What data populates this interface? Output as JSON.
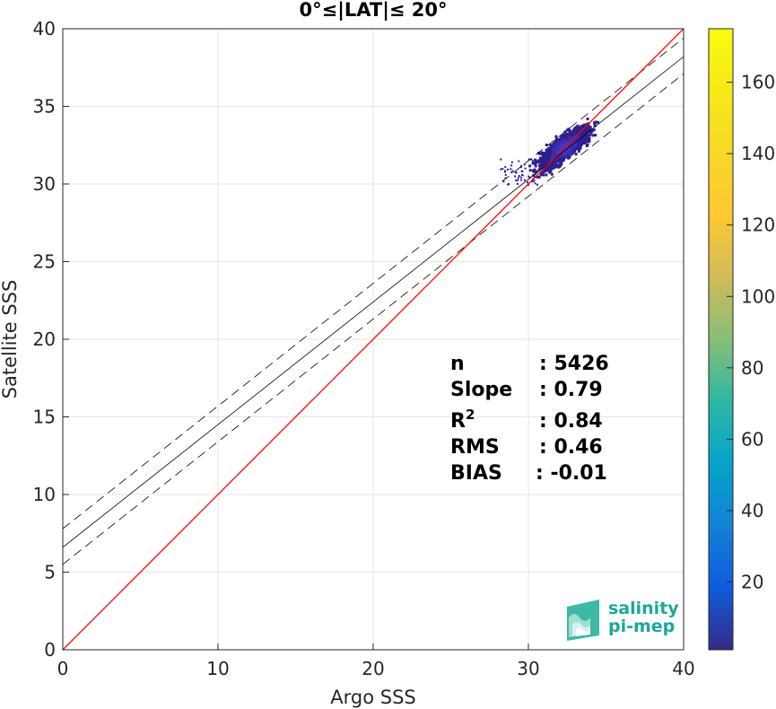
{
  "chart_data": {
    "type": "heatmap-scatter",
    "title": "0°≤|LAT|≤ 20°",
    "xlabel": "Argo SSS",
    "ylabel": "Satellite SSS",
    "xlim": [
      0,
      40
    ],
    "ylim": [
      0,
      40
    ],
    "x_ticks": [
      "0",
      "10",
      "20",
      "30",
      "40"
    ],
    "y_ticks": [
      "0",
      "5",
      "10",
      "15",
      "20",
      "25",
      "30",
      "35",
      "40"
    ],
    "grid": true,
    "colorbar": {
      "range": [
        1,
        175
      ],
      "ticks": [
        "20",
        "40",
        "60",
        "80",
        "100",
        "120",
        "140",
        "160"
      ],
      "tick_values": [
        20,
        40,
        60,
        80,
        100,
        120,
        140,
        160
      ],
      "colormap": "parula"
    },
    "lines": {
      "identity": {
        "slope": 1,
        "intercept": 0,
        "color": "#ff0000"
      },
      "regression": {
        "slope": 0.79,
        "intercept": 6.6,
        "color": "#000000"
      },
      "upper_band": {
        "slope": 0.79,
        "intercept": 7.8,
        "dash": true
      },
      "lower_band": {
        "slope": 0.79,
        "intercept": 5.5,
        "dash": true
      }
    },
    "cluster": {
      "x_center": 32.3,
      "y_center": 32.3,
      "x_range": [
        27.5,
        35.3
      ],
      "y_range": [
        29.7,
        34.6
      ]
    },
    "stats": [
      {
        "label": "n",
        "value": ": 5426"
      },
      {
        "label": "Slope",
        "value": ": 0.79"
      },
      {
        "label": "R",
        "sup": "2",
        "value": ": 0.84"
      },
      {
        "label": "RMS",
        "value": ": 0.46"
      },
      {
        "label": "BIAS",
        "value": ": -0.01"
      }
    ]
  },
  "logo": {
    "line1": "salinity",
    "line2": "pi-mep"
  }
}
